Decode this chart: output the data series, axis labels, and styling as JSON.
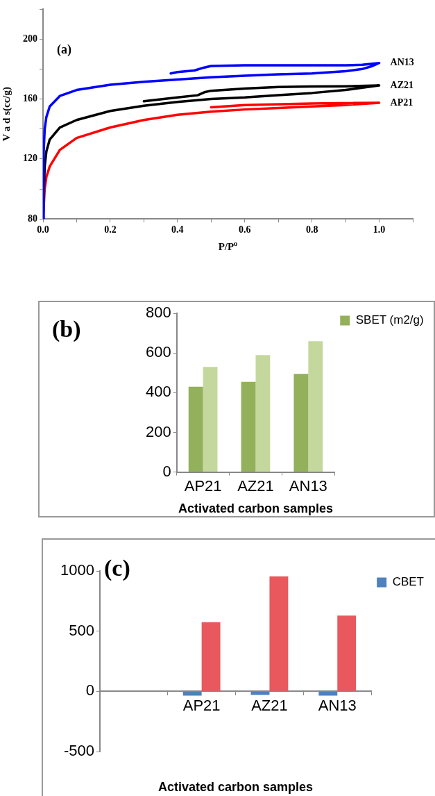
{
  "chart_data": [
    {
      "type": "line",
      "title": "(a)",
      "xlabel": "P/P$^{o}$",
      "ylabel": "V a d s(cc/g)",
      "xlim": [
        0,
        1.1
      ],
      "ylim": [
        80,
        220
      ],
      "xticks": [
        {
          "value": 0,
          "label": "0.0"
        },
        {
          "value": 0.1,
          "label": null
        },
        {
          "value": 0.2,
          "label": "0.2"
        },
        {
          "value": 0.3,
          "label": null
        },
        {
          "value": 0.4,
          "label": "0.4"
        },
        {
          "value": 0.5,
          "label": null
        },
        {
          "value": 0.6,
          "label": "0.6"
        },
        {
          "value": 0.7,
          "label": null
        },
        {
          "value": 0.8,
          "label": "0.8"
        },
        {
          "value": 0.9,
          "label": null
        },
        {
          "value": 1.0,
          "label": "1.0"
        },
        {
          "value": 1.1,
          "label": null
        }
      ],
      "yticks": [
        80,
        {
          "value": 100,
          "label": null
        },
        120,
        {
          "value": 140,
          "label": null
        },
        160,
        {
          "value": 180,
          "label": null
        },
        200,
        {
          "value": 220,
          "label": null
        }
      ],
      "marker": "none",
      "line_style": "solid",
      "series": [
        {
          "name": "AN13",
          "color": "#0000ff",
          "x": [
            0,
            0.002,
            0.005,
            0.01,
            0.02,
            0.05,
            0.1,
            0.2,
            0.3,
            0.4,
            0.5,
            0.6,
            0.7,
            0.8,
            0.9,
            0.95,
            0.98,
            1.0,
            0.95,
            0.9,
            0.8,
            0.6,
            0.5,
            0.48,
            0.45,
            0.4,
            0.38
          ],
          "values": [
            80,
            125,
            140,
            148,
            155,
            162,
            166,
            169.5,
            171.5,
            173,
            174.5,
            175.5,
            176.5,
            177,
            178.5,
            180,
            182,
            184,
            182.8,
            182.5,
            182.5,
            182.5,
            182,
            181,
            179,
            178,
            177
          ]
        },
        {
          "name": "AZ21",
          "color": "#000000",
          "x": [
            0,
            0.005,
            0.01,
            0.02,
            0.05,
            0.1,
            0.2,
            0.3,
            0.4,
            0.5,
            0.6,
            0.7,
            0.8,
            0.9,
            0.95,
            1.0,
            0.9,
            0.8,
            0.7,
            0.6,
            0.5,
            0.48,
            0.46,
            0.4,
            0.3
          ],
          "values": [
            80,
            115,
            125,
            133,
            141,
            146,
            152,
            155.5,
            158,
            160,
            161,
            162.5,
            164,
            166,
            167.5,
            169,
            168.5,
            168.3,
            168,
            167,
            165.5,
            164.5,
            162.5,
            161,
            158.5
          ]
        },
        {
          "name": "AP21",
          "color": "#ff0000",
          "x": [
            0,
            0.005,
            0.01,
            0.02,
            0.05,
            0.1,
            0.2,
            0.3,
            0.4,
            0.5,
            0.6,
            0.7,
            0.8,
            0.9,
            1.0,
            0.8,
            0.6,
            0.5
          ],
          "values": [
            80,
            100,
            108,
            115,
            126,
            134,
            141,
            146,
            149.5,
            151.5,
            153,
            154,
            155,
            156,
            157.5,
            157,
            156,
            154.5
          ]
        }
      ]
    },
    {
      "type": "bar",
      "title": "(b)",
      "xlabel": "Activated carbon samples",
      "categories": [
        "AP21",
        "AZ21",
        "AN13"
      ],
      "ylim": [
        0,
        800
      ],
      "yticks": [
        0,
        200,
        400,
        600,
        800
      ],
      "legend": "top right",
      "series": [
        {
          "name": "SBET (m2/g)",
          "color": "#93b05a",
          "values": [
            430,
            455,
            495
          ]
        },
        {
          "color": "#c4d89e",
          "values": [
            530,
            590,
            660
          ]
        }
      ]
    },
    {
      "type": "bar",
      "title": "(c)",
      "xlabel": "Activated carbon samples",
      "categories": [
        null,
        "AP21",
        "AZ21",
        "AN13"
      ],
      "ylim": [
        -500,
        1000
      ],
      "yticks": [
        -500,
        0,
        500,
        1000
      ],
      "legend": "top right",
      "series": [
        {
          "name": "CBET",
          "color": "#4f81bd",
          "values": [
            null,
            -35,
            -30,
            -35
          ]
        },
        {
          "color": "#e8585c",
          "values": [
            null,
            575,
            955,
            630
          ]
        }
      ]
    }
  ]
}
